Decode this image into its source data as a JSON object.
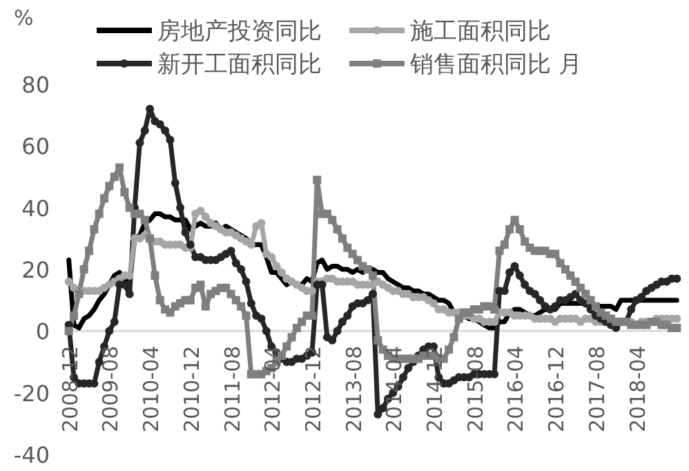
{
  "chart_data": {
    "type": "line",
    "ylabel": "%",
    "legend": "top",
    "tick_labels": "xy",
    "ylim": [
      -40,
      80
    ],
    "yticks": [
      -40,
      -20,
      0,
      20,
      40,
      60,
      80
    ],
    "categories": [
      "2008-12",
      null,
      null,
      null,
      null,
      null,
      null,
      null,
      "2009-08",
      null,
      null,
      null,
      null,
      null,
      null,
      null,
      "2010-04",
      null,
      null,
      null,
      null,
      null,
      null,
      null,
      "2010-12",
      null,
      null,
      null,
      null,
      null,
      null,
      null,
      "2011-08",
      null,
      null,
      null,
      null,
      null,
      null,
      null,
      "2012-04",
      null,
      null,
      null,
      null,
      null,
      null,
      null,
      "2012-12",
      null,
      null,
      null,
      null,
      null,
      null,
      null,
      "2013-08",
      null,
      null,
      null,
      null,
      null,
      null,
      null,
      "2014-04",
      null,
      null,
      null,
      null,
      null,
      null,
      null,
      "2014-12",
      null,
      null,
      null,
      null,
      null,
      null,
      null,
      "2015-08",
      null,
      null,
      null,
      null,
      null,
      null,
      null,
      "2016-04",
      null,
      null,
      null,
      null,
      null,
      null,
      null,
      "2016-12",
      null,
      null,
      null,
      null,
      null,
      null,
      null,
      "2017-08",
      null,
      null,
      null,
      null,
      null,
      null,
      null,
      "2018-04",
      null,
      null,
      null,
      null,
      null,
      null,
      null,
      null
    ],
    "series": [
      {
        "name": "房地产投资同比",
        "color": "#000000",
        "marker": "none",
        "values": [
          23,
          2,
          1,
          4,
          5,
          7,
          10,
          12,
          15,
          18,
          19,
          17,
          16,
          30,
          31,
          35,
          36,
          38,
          38,
          37,
          37,
          36,
          36,
          36,
          33,
          34,
          35,
          34,
          34,
          35,
          33,
          34,
          33,
          32,
          31,
          30,
          28,
          28,
          28,
          24,
          19,
          19,
          17,
          15,
          16,
          15,
          15,
          17,
          16,
          22,
          23,
          20,
          21,
          21,
          20,
          20,
          19,
          20,
          19,
          20,
          20,
          19,
          19,
          17,
          16,
          15,
          14,
          14,
          13,
          13,
          12,
          12,
          11,
          10,
          10,
          9,
          6,
          5,
          5,
          4,
          4,
          3,
          2,
          1,
          1,
          3,
          3,
          6,
          7,
          7,
          6,
          5,
          5,
          6,
          7,
          7,
          7,
          9,
          9,
          9,
          9,
          9,
          9,
          8,
          8,
          8,
          8,
          8,
          7,
          10,
          10,
          10,
          10,
          10,
          10,
          10,
          10,
          10,
          10,
          10,
          10
        ]
      },
      {
        "name": "施工面积同比",
        "color": "#a6a6a6",
        "marker": "circle",
        "values": [
          16,
          14,
          12,
          13,
          13,
          13,
          13,
          14,
          15,
          16,
          17,
          18,
          18,
          30,
          30,
          31,
          30,
          29,
          29,
          28,
          28,
          28,
          28,
          27,
          27,
          38,
          39,
          37,
          35,
          34,
          33,
          32,
          32,
          31,
          30,
          29,
          28,
          34,
          35,
          25,
          24,
          21,
          19,
          17,
          16,
          15,
          14,
          13,
          13,
          16,
          16,
          17,
          17,
          16,
          16,
          16,
          16,
          15,
          15,
          15,
          15,
          16,
          15,
          14,
          13,
          13,
          12,
          12,
          11,
          11,
          11,
          10,
          9,
          7,
          7,
          6,
          6,
          6,
          5,
          5,
          4,
          4,
          3,
          3,
          3,
          6,
          6,
          6,
          5,
          5,
          5,
          5,
          4,
          4,
          4,
          4,
          3,
          4,
          4,
          4,
          4,
          3,
          4,
          4,
          3,
          3,
          3,
          3,
          3,
          3,
          3,
          3,
          2,
          3,
          3,
          3,
          4,
          4,
          4,
          4,
          4
        ]
      },
      {
        "name": "新开工面积同比",
        "color": "#262626",
        "marker": "circle",
        "values": [
          2,
          -15,
          -17,
          -17,
          -17,
          -17,
          -10,
          -5,
          0,
          3,
          15,
          15,
          12,
          40,
          61,
          65,
          72,
          68,
          67,
          65,
          62,
          48,
          40,
          32,
          28,
          24,
          24,
          23,
          23,
          23,
          24,
          25,
          26,
          22,
          20,
          16,
          9,
          5,
          4,
          0,
          -5,
          -7,
          -9,
          -10,
          -10,
          -9,
          -9,
          -8,
          -7,
          15,
          15,
          -2,
          -3,
          0,
          3,
          5,
          8,
          9,
          9,
          10,
          12,
          -27,
          -25,
          -22,
          -20,
          -18,
          -15,
          -12,
          -10,
          -8,
          -6,
          -5,
          -5,
          -15,
          -17,
          -17,
          -16,
          -15,
          -15,
          -15,
          -14,
          -14,
          -14,
          -14,
          -14,
          13,
          13,
          19,
          21,
          18,
          15,
          13,
          12,
          10,
          8,
          7,
          8,
          10,
          10,
          11,
          12,
          10,
          9,
          7,
          5,
          4,
          3,
          2,
          1,
          3,
          3,
          7,
          10,
          11,
          13,
          14,
          15,
          16,
          16,
          17,
          17
        ]
      },
      {
        "name": "销售面积同比 月",
        "color": "#7f7f7f",
        "marker": "square",
        "values": [
          0,
          5,
          12,
          20,
          26,
          33,
          38,
          43,
          47,
          50,
          53,
          45,
          40,
          38,
          38,
          36,
          30,
          18,
          10,
          7,
          6,
          8,
          9,
          10,
          10,
          14,
          15,
          8,
          12,
          13,
          14,
          14,
          12,
          10,
          8,
          5,
          -14,
          -14,
          -14,
          -13,
          -12,
          -10,
          -8,
          -5,
          -2,
          1,
          3,
          5,
          5,
          49,
          38,
          38,
          36,
          33,
          30,
          27,
          25,
          23,
          21,
          20,
          18,
          -3,
          -6,
          -8,
          -9,
          -9,
          -9,
          -9,
          -9,
          -9,
          -8,
          -8,
          -8,
          -9,
          -9,
          -6,
          -2,
          4,
          6,
          6,
          7,
          7,
          8,
          8,
          7,
          26,
          28,
          33,
          36,
          33,
          29,
          27,
          26,
          26,
          26,
          25,
          25,
          22,
          20,
          18,
          16,
          14,
          12,
          10,
          8,
          6,
          5,
          4,
          3,
          3,
          3,
          2,
          2,
          2,
          2,
          3,
          3,
          2,
          2,
          1,
          1
        ]
      }
    ]
  }
}
